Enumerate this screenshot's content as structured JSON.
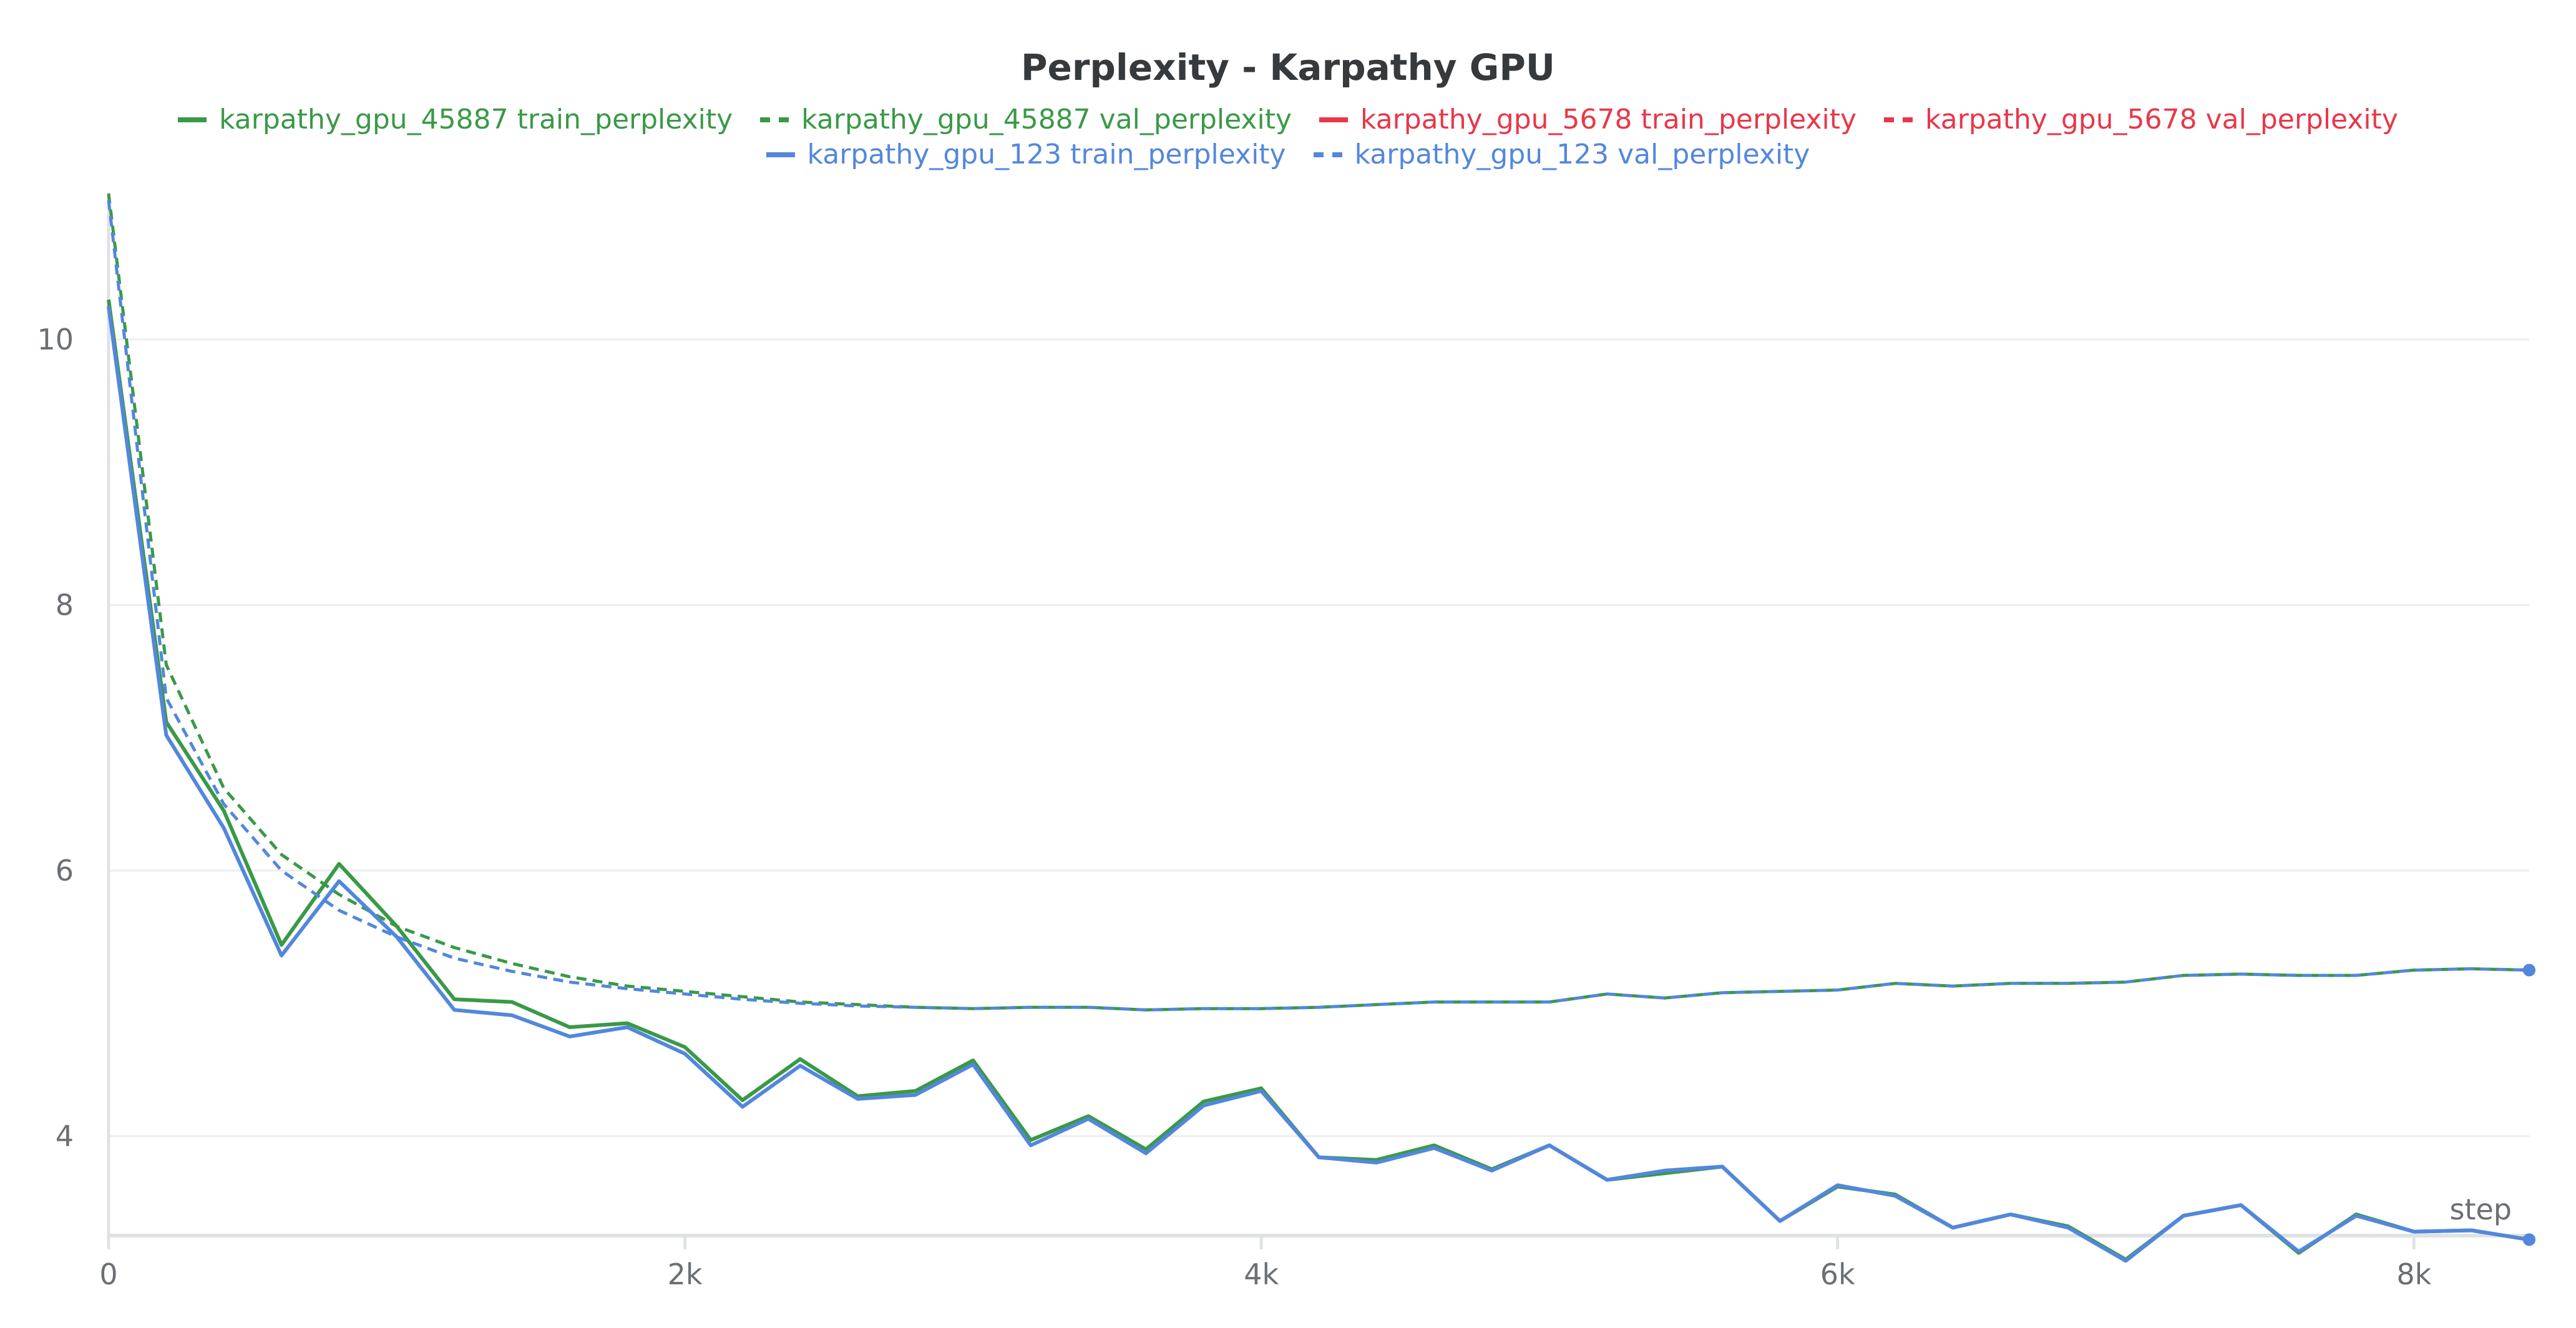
{
  "chart_data": {
    "type": "line",
    "title": "Perplexity - Karpathy GPU",
    "xlabel": "step",
    "ylabel": "",
    "xlim": [
      0,
      8400
    ],
    "ylim": [
      3.25,
      11.1
    ],
    "xticks": [
      {
        "value": 0,
        "label": "0"
      },
      {
        "value": 2000,
        "label": "2k"
      },
      {
        "value": 4000,
        "label": "4k"
      },
      {
        "value": 6000,
        "label": "6k"
      },
      {
        "value": 8000,
        "label": "8k"
      }
    ],
    "yticks": [
      {
        "value": 4,
        "label": "4"
      },
      {
        "value": 6,
        "label": "6"
      },
      {
        "value": 8,
        "label": "8"
      },
      {
        "value": 10,
        "label": "10"
      }
    ],
    "grid": "horizontal",
    "legend_position": "top",
    "series": [
      {
        "name": "karpathy_gpu_45887 train_perplexity",
        "color": "#3a9947",
        "dash": false,
        "x": [
          0,
          200,
          400,
          600,
          800,
          1000,
          1200,
          1400,
          1600,
          1800,
          2000,
          2200,
          2400,
          2600,
          2800,
          3000,
          3200,
          3400,
          3600,
          3800,
          4000,
          4200,
          4400,
          4600,
          4800,
          5000,
          5200,
          5400,
          5600,
          5800,
          6000,
          6200,
          6400,
          6600,
          6800,
          7000,
          7200,
          7400,
          7600,
          7800,
          8000,
          8200,
          8400
        ],
        "y": [
          10.3,
          7.12,
          6.45,
          5.44,
          6.05,
          5.58,
          5.03,
          5.01,
          4.82,
          4.85,
          4.67,
          4.27,
          4.58,
          4.3,
          4.34,
          4.57,
          3.97,
          4.15,
          3.9,
          4.26,
          4.36,
          3.84,
          3.82,
          3.93,
          3.75,
          3.93,
          3.67,
          3.72,
          3.77,
          3.36,
          3.62,
          3.56,
          3.31,
          3.41,
          3.32,
          3.07,
          3.4,
          3.48,
          3.12,
          3.41,
          3.28,
          3.29,
          3.22
        ]
      },
      {
        "name": "karpathy_gpu_45887 val_perplexity",
        "color": "#3a9947",
        "dash": true,
        "x": [
          0,
          200,
          400,
          600,
          800,
          1000,
          1200,
          1400,
          1600,
          1800,
          2000,
          2200,
          2400,
          2600,
          2800,
          3000,
          3200,
          3400,
          3600,
          3800,
          4000,
          4200,
          4400,
          4600,
          4800,
          5000,
          5200,
          5400,
          5600,
          5800,
          6000,
          6200,
          6400,
          6600,
          6800,
          7000,
          7200,
          7400,
          7600,
          7800,
          8000,
          8200,
          8400
        ],
        "y": [
          11.1,
          7.55,
          6.62,
          6.12,
          5.82,
          5.58,
          5.42,
          5.3,
          5.2,
          5.13,
          5.09,
          5.05,
          5.01,
          4.99,
          4.97,
          4.96,
          4.97,
          4.97,
          4.95,
          4.96,
          4.96,
          4.97,
          4.99,
          5.01,
          5.01,
          5.01,
          5.07,
          5.04,
          5.08,
          5.09,
          5.1,
          5.15,
          5.13,
          5.15,
          5.15,
          5.16,
          5.21,
          5.22,
          5.21,
          5.21,
          5.25,
          5.26,
          5.25
        ]
      },
      {
        "name": "karpathy_gpu_5678 train_perplexity",
        "color": "#e8374a",
        "dash": false,
        "x": [],
        "y": []
      },
      {
        "name": "karpathy_gpu_5678 val_perplexity",
        "color": "#e8374a",
        "dash": true,
        "x": [],
        "y": []
      },
      {
        "name": "karpathy_gpu_123 train_perplexity",
        "color": "#5387dd",
        "dash": false,
        "x": [
          0,
          200,
          400,
          600,
          800,
          1000,
          1200,
          1400,
          1600,
          1800,
          2000,
          2200,
          2400,
          2600,
          2800,
          3000,
          3200,
          3400,
          3600,
          3800,
          4000,
          4200,
          4400,
          4600,
          4800,
          5000,
          5200,
          5400,
          5600,
          5800,
          6000,
          6200,
          6400,
          6600,
          6800,
          7000,
          7200,
          7400,
          7600,
          7800,
          8000,
          8200,
          8400
        ],
        "y": [
          10.25,
          7.02,
          6.32,
          5.36,
          5.92,
          5.5,
          4.95,
          4.91,
          4.75,
          4.82,
          4.62,
          4.22,
          4.53,
          4.28,
          4.31,
          4.54,
          3.93,
          4.13,
          3.87,
          4.23,
          4.34,
          3.84,
          3.8,
          3.91,
          3.74,
          3.93,
          3.67,
          3.74,
          3.77,
          3.36,
          3.63,
          3.55,
          3.31,
          3.41,
          3.31,
          3.06,
          3.4,
          3.48,
          3.13,
          3.4,
          3.28,
          3.29,
          3.22
        ]
      },
      {
        "name": "karpathy_gpu_123 val_perplexity",
        "color": "#5387dd",
        "dash": true,
        "x": [
          0,
          200,
          400,
          600,
          800,
          1000,
          1200,
          1400,
          1600,
          1800,
          2000,
          2200,
          2400,
          2600,
          2800,
          3000,
          3200,
          3400,
          3600,
          3800,
          4000,
          4200,
          4400,
          4600,
          4800,
          5000,
          5200,
          5400,
          5600,
          5800,
          6000,
          6200,
          6400,
          6600,
          6800,
          7000,
          7200,
          7400,
          7600,
          7800,
          8000,
          8200,
          8400
        ],
        "y": [
          11.05,
          7.3,
          6.5,
          6.0,
          5.7,
          5.5,
          5.34,
          5.24,
          5.16,
          5.11,
          5.07,
          5.03,
          5.0,
          4.98,
          4.97,
          4.96,
          4.97,
          4.97,
          4.95,
          4.96,
          4.96,
          4.97,
          4.99,
          5.01,
          5.01,
          5.01,
          5.07,
          5.04,
          5.08,
          5.09,
          5.1,
          5.15,
          5.13,
          5.15,
          5.15,
          5.16,
          5.21,
          5.22,
          5.21,
          5.21,
          5.25,
          5.26,
          5.25
        ]
      }
    ]
  }
}
